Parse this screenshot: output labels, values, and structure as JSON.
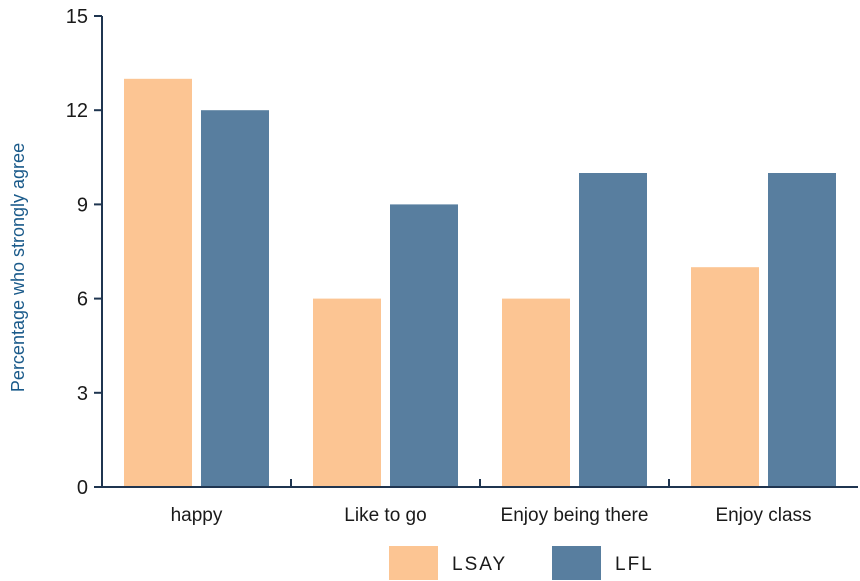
{
  "chart_data": {
    "type": "bar",
    "categories": [
      "happy",
      "Like to go",
      "Enjoy being there",
      "Enjoy class"
    ],
    "series": [
      {
        "name": "LSAY",
        "values": [
          13,
          6,
          6,
          7
        ],
        "color": "#fcc593"
      },
      {
        "name": "LFL",
        "values": [
          12,
          9,
          10,
          10
        ],
        "color": "#587e9f"
      }
    ],
    "title": "",
    "xlabel": "",
    "ylabel": "Percentage who strongly agree",
    "ylim": [
      0,
      15
    ],
    "yticks": [
      0,
      3,
      6,
      9,
      12,
      15
    ],
    "grid": false,
    "legend_position": "bottom",
    "axis_color": "#1f3550"
  }
}
